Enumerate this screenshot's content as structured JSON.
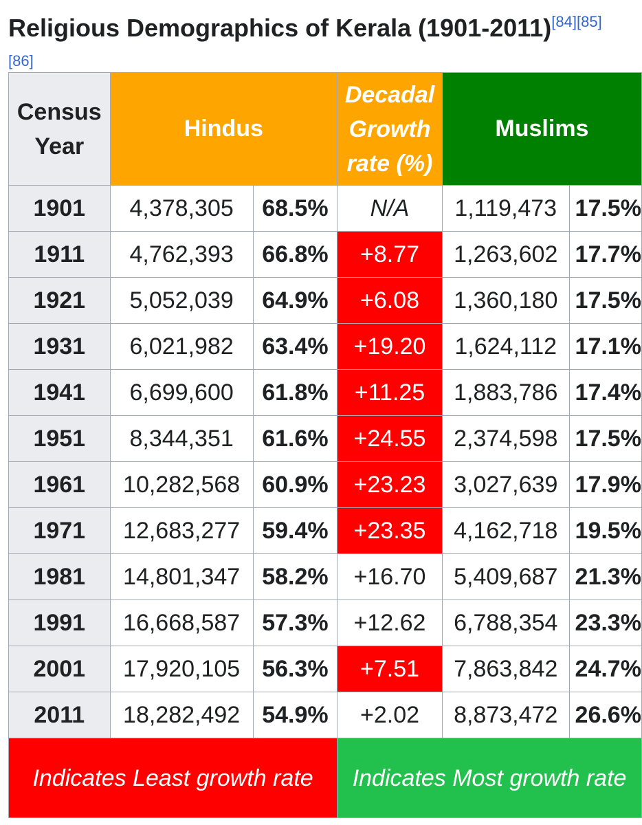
{
  "title": {
    "text": "Religious Demographics of Kerala (1901-2011)",
    "refs": "[84][85][86]"
  },
  "headers": {
    "year": "Census Year",
    "hindus": "Hindus",
    "growth": "Decadal Growth rate (%)",
    "muslims": "Muslims"
  },
  "colors": {
    "hindu_header": "#ffa500",
    "muslim_header": "#008000",
    "least_growth": "#ff0000",
    "most_growth": "#22c04c",
    "year_column": "#eaecf0"
  },
  "rows": [
    {
      "year": "1901",
      "hindu_pop": "4,378,305",
      "hindu_pct": "68.5%",
      "growth": "N/A",
      "muslim_pop": "1,119,473",
      "muslim_pct": "17.5%"
    },
    {
      "year": "1911",
      "hindu_pop": "4,762,393",
      "hindu_pct": "66.8%",
      "growth": "+8.77",
      "muslim_pop": "1,263,602",
      "muslim_pct": "17.7%"
    },
    {
      "year": "1921",
      "hindu_pop": "5,052,039",
      "hindu_pct": "64.9%",
      "growth": "+6.08",
      "muslim_pop": "1,360,180",
      "muslim_pct": "17.5%"
    },
    {
      "year": "1931",
      "hindu_pop": "6,021,982",
      "hindu_pct": "63.4%",
      "growth": "+19.20",
      "muslim_pop": "1,624,112",
      "muslim_pct": "17.1%"
    },
    {
      "year": "1941",
      "hindu_pop": "6,699,600",
      "hindu_pct": "61.8%",
      "growth": "+11.25",
      "muslim_pop": "1,883,786",
      "muslim_pct": "17.4%"
    },
    {
      "year": "1951",
      "hindu_pop": "8,344,351",
      "hindu_pct": "61.6%",
      "growth": "+24.55",
      "muslim_pop": "2,374,598",
      "muslim_pct": "17.5%"
    },
    {
      "year": "1961",
      "hindu_pop": "10,282,568",
      "hindu_pct": "60.9%",
      "growth": "+23.23",
      "muslim_pop": "3,027,639",
      "muslim_pct": "17.9%"
    },
    {
      "year": "1971",
      "hindu_pop": "12,683,277",
      "hindu_pct": "59.4%",
      "growth": "+23.35",
      "muslim_pop": "4,162,718",
      "muslim_pct": "19.5%"
    },
    {
      "year": "1981",
      "hindu_pop": "14,801,347",
      "hindu_pct": "58.2%",
      "growth": "+16.70",
      "muslim_pop": "5,409,687",
      "muslim_pct": "21.3%"
    },
    {
      "year": "1991",
      "hindu_pop": "16,668,587",
      "hindu_pct": "57.3%",
      "growth": "+12.62",
      "muslim_pop": "6,788,354",
      "muslim_pct": "23.3%"
    },
    {
      "year": "2001",
      "hindu_pop": "17,920,105",
      "hindu_pct": "56.3%",
      "growth": "+7.51",
      "muslim_pop": "7,863,842",
      "muslim_pct": "24.7%"
    },
    {
      "year": "2011",
      "hindu_pop": "18,282,492",
      "hindu_pct": "54.9%",
      "growth": "+2.02",
      "muslim_pop": "8,873,472",
      "muslim_pct": "26.6%"
    }
  ],
  "legend": {
    "least": "Indicates Least growth rate",
    "most": "Indicates Most growth rate"
  }
}
